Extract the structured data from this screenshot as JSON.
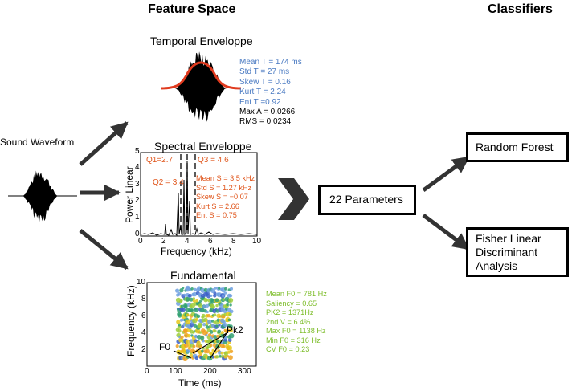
{
  "headers": {
    "feature_space": "Feature Space",
    "classifiers": "Classifiers"
  },
  "sound_waveform": {
    "label": "Sound Waveform"
  },
  "temporal": {
    "title": "Temporal Enveloppe",
    "stats_blue": [
      "Mean T = 174 ms",
      "Std T = 27 ms",
      "Skew T = 0.16",
      "Kurt T = 2.24",
      "Ent T =0.92"
    ],
    "stats_black": [
      "Max A = 0.0266",
      "RMS = 0.0234"
    ]
  },
  "spectral": {
    "title": "Spectral Enveloppe",
    "ylabel": "Power Linear",
    "xlabel": "Frequency (kHz)",
    "xticks": [
      "0",
      "2",
      "4",
      "6",
      "8",
      "10"
    ],
    "yticks": [
      "0",
      "1",
      "2",
      "3",
      "4",
      "5"
    ],
    "quartiles": [
      "Q1=2.7",
      "Q2 = 3.4",
      "Q3 = 4.6"
    ],
    "stats": [
      "Mean S = 3.5 kHz",
      "Std S = 1.27 kHz",
      "Skew S = −0.07",
      "Kurt S = 2.66",
      "Ent S = 0.75"
    ]
  },
  "fundamental": {
    "title": "Fundamental",
    "ylabel": "Frequency (kHz)",
    "xlabel": "Time (ms)",
    "xticks": [
      "0",
      "100",
      "200",
      "300"
    ],
    "yticks": [
      "2",
      "4",
      "6",
      "8",
      "10"
    ],
    "annotations": [
      "F0",
      "Pk2"
    ],
    "stats": [
      "Mean F0 = 781 Hz",
      "Saliency = 0.65",
      "PK2 = 1371Hz",
      "2nd V = 6.4%",
      "Max F0 = 1138 Hz",
      "Min F0 = 316 Hz",
      "CV F0 = 0.23"
    ]
  },
  "parameters_box": {
    "label": "22 Parameters"
  },
  "random_forest_box": {
    "label": "Random Forest"
  },
  "fisher_box": {
    "lines": [
      "Fisher Linear",
      "Discriminant",
      "Analysis"
    ]
  },
  "colors": {
    "temporal_stats": "#4a7ac2",
    "spectral_stats": "#e0561c",
    "fundamental_stats": "#7dbd2a",
    "envelope_curve": "#e03a1e",
    "arrows": "#333333"
  }
}
